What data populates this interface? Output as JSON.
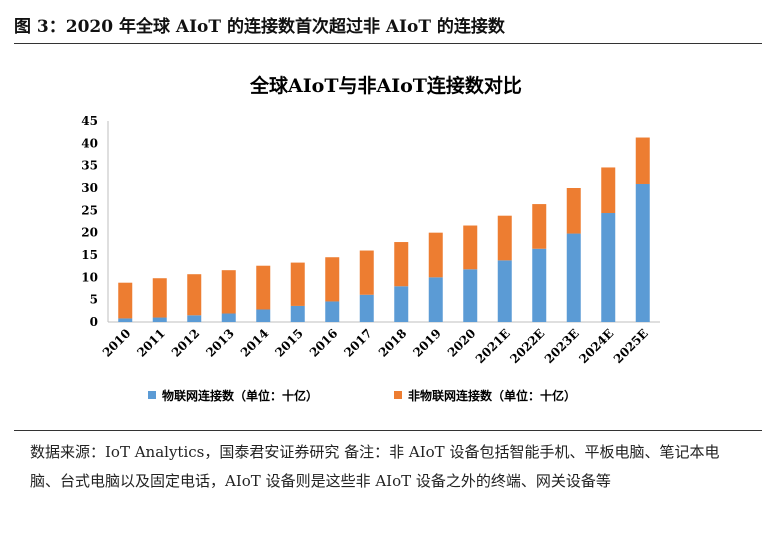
{
  "figure": {
    "heading": "图 3：2020 年全球 AIoT 的连接数首次超过非 AIoT 的连接数",
    "source_note": "数据来源：IoT Analytics，国泰君安证券研究 备注：非 AIoT 设备包括智能手机、平板电脑、笔记本电脑、台式电脑以及固定电话，AIoT 设备则是这些非 AIoT 设备之外的终端、网关设备等"
  },
  "chart_data": {
    "type": "bar",
    "stacked": true,
    "title": "全球AIoT与非AIoT连接数对比",
    "xlabel": "",
    "ylabel": "",
    "ylim": [
      0,
      45
    ],
    "yticks": [
      0,
      5,
      10,
      15,
      20,
      25,
      30,
      35,
      40,
      45
    ],
    "grid": false,
    "legend_position": "bottom",
    "categories": [
      "2010",
      "2011",
      "2012",
      "2013",
      "2014",
      "2015",
      "2016",
      "2017",
      "2018",
      "2019",
      "2020",
      "2021E",
      "2022E",
      "2023E",
      "2024E",
      "2025E"
    ],
    "series": [
      {
        "name": "物联网连接数（单位：十亿）",
        "color": "#5B9BD5",
        "values": [
          0.8,
          1.0,
          1.5,
          1.9,
          2.8,
          3.6,
          4.6,
          6.1,
          8.0,
          10.0,
          11.8,
          13.8,
          16.4,
          19.8,
          24.4,
          30.9
        ]
      },
      {
        "name": "非物联网连接数（单位：十亿）",
        "color": "#ED7D31",
        "values": [
          8.0,
          8.8,
          9.2,
          9.7,
          9.8,
          9.7,
          9.9,
          9.9,
          9.9,
          10.0,
          9.8,
          10.0,
          10.0,
          10.2,
          10.2,
          10.4
        ]
      }
    ]
  }
}
